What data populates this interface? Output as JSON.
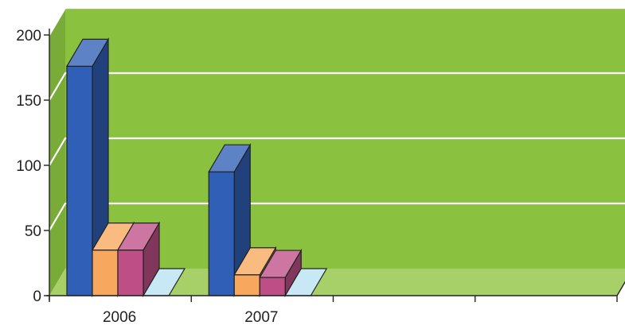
{
  "chart_data": {
    "type": "bar",
    "categories": [
      "2006",
      "2007"
    ],
    "category_slots": 4,
    "series": [
      {
        "color": "#2f5fb6",
        "values": [
          176,
          95
        ]
      },
      {
        "color": "#f8a85e",
        "values": [
          35,
          16
        ]
      },
      {
        "color": "#bd4f86",
        "values": [
          35,
          14
        ]
      },
      {
        "color": "#b8e2f2",
        "values": [
          0,
          0
        ]
      }
    ],
    "ylim": [
      0,
      200
    ],
    "yticks": [
      0,
      50,
      100,
      150,
      200
    ],
    "grid": true,
    "legend": "none",
    "three_d": true,
    "colors": {
      "wall": "#8ac240",
      "floor": "#a7d168",
      "gridline": "#ffffff"
    }
  }
}
